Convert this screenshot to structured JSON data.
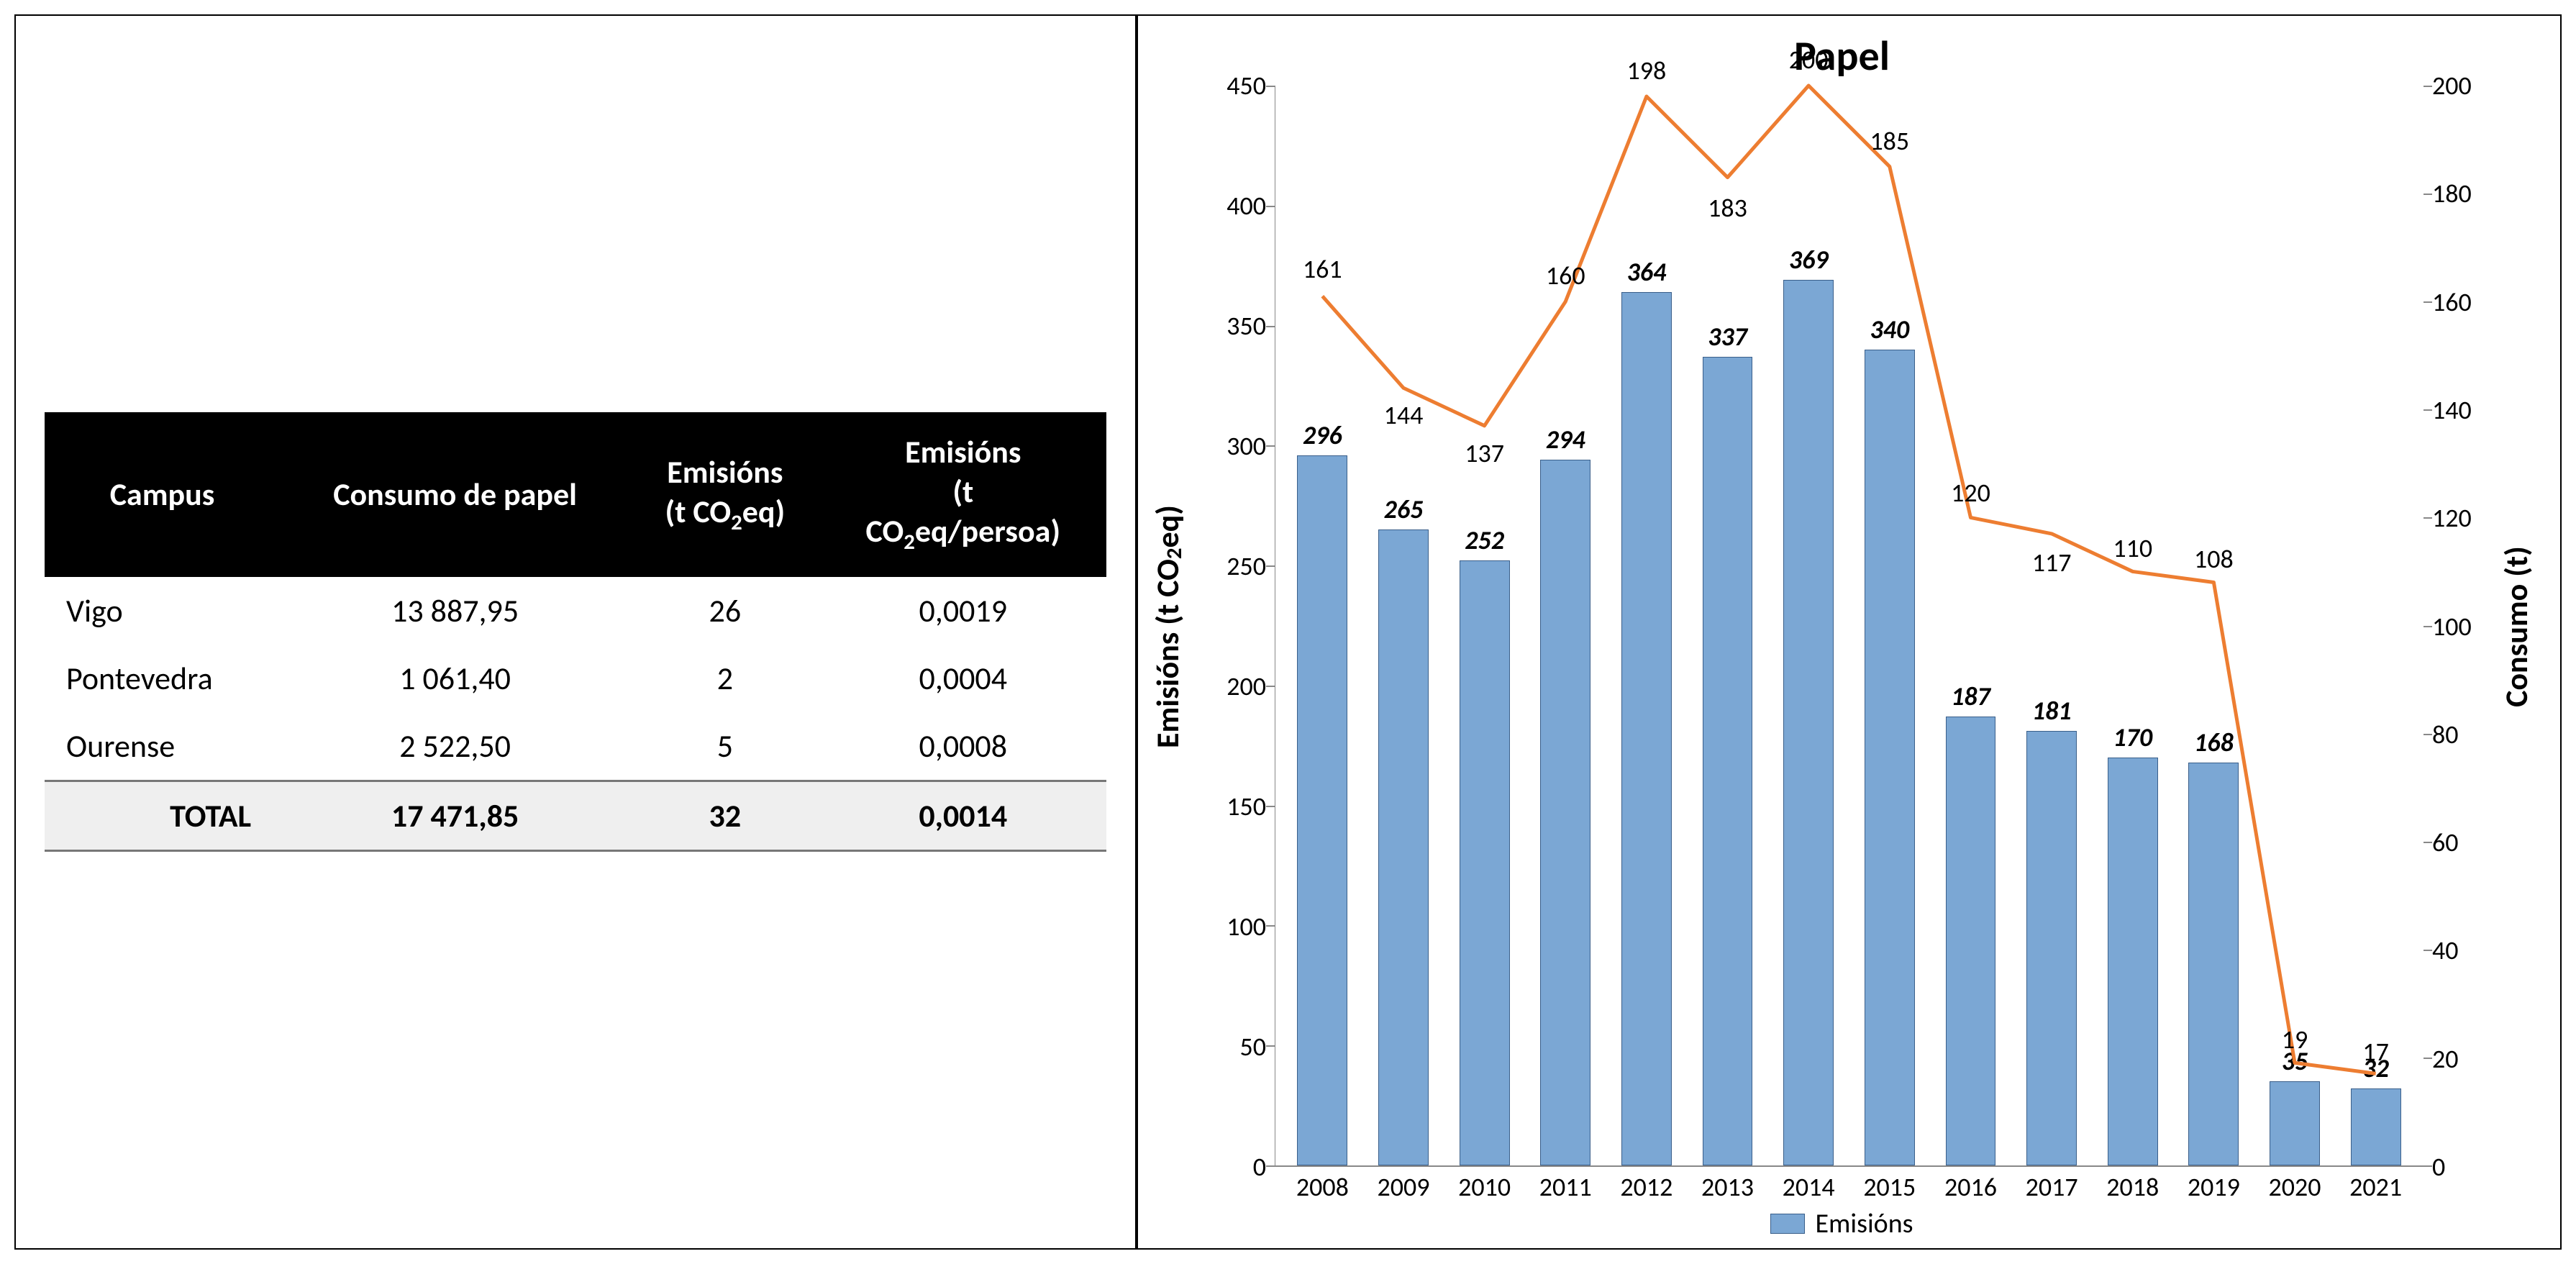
{
  "table": {
    "columns": [
      "Campus",
      "Consumo de papel",
      "Emisións (t CO₂eq)",
      "Emisións (t CO₂eq/persoa)"
    ],
    "rows": [
      [
        "Vigo",
        "13 887,95",
        "26",
        "0,0019"
      ],
      [
        "Pontevedra",
        "1 061,40",
        "2",
        "0,0004"
      ],
      [
        "Ourense",
        "2 522,50",
        "5",
        "0,0008"
      ]
    ],
    "total_row": [
      "TOTAL",
      "17 471,85",
      "32",
      "0,0014"
    ]
  },
  "chart": {
    "title": "Papel",
    "categories": [
      "2008",
      "2009",
      "2010",
      "2011",
      "2012",
      "2013",
      "2014",
      "2015",
      "2016",
      "2017",
      "2018",
      "2019",
      "2020",
      "2021"
    ],
    "bars": {
      "label": "Emisións",
      "values": [
        296,
        265,
        252,
        294,
        364,
        337,
        369,
        340,
        187,
        181,
        170,
        168,
        35,
        32
      ],
      "color": "#7ba7d4",
      "border_color": "#3a5f8a"
    },
    "line": {
      "label": "Consumo",
      "values": [
        161,
        144,
        137,
        160,
        198,
        183,
        200,
        185,
        120,
        117,
        110,
        108,
        19,
        17
      ],
      "color": "#ed7d31",
      "width": 5
    },
    "y_left": {
      "label": "Emisións (t CO₂eq)",
      "min": 0,
      "max": 450,
      "step": 50
    },
    "y_right": {
      "label": "Consumo (t)",
      "min": 0,
      "max": 200,
      "step": 20
    },
    "line_label_offsets": {
      "0": -60,
      "1": 16,
      "2": 16,
      "3": -58,
      "4": -58,
      "5": 20,
      "6": -58,
      "7": -58,
      "8": -56,
      "9": 18,
      "10": -54,
      "11": -54,
      "12": -54,
      "13": -52
    },
    "legend_text": "Emisións",
    "background_color": "#ffffff",
    "axis_color": "#888888",
    "tick_font_size": 36,
    "title_font_size": 58
  }
}
